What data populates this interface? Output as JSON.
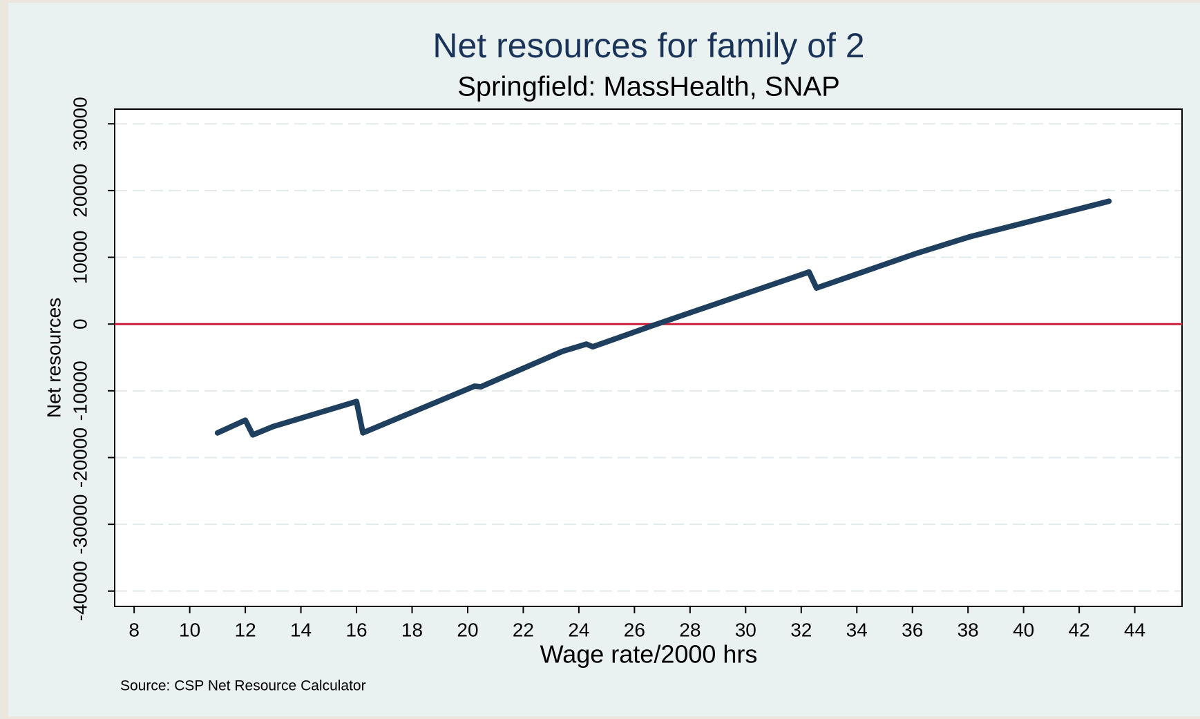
{
  "chart_data": {
    "type": "line",
    "title": "Net resources for family of 2",
    "subtitle": "Springfield: MassHealth, SNAP",
    "x_label": "Wage rate/2000 hrs",
    "y_label": "Net resources",
    "note": "Source: CSP Net Resource Calculator",
    "x": [
      11,
      12,
      12.27,
      13,
      16,
      16.23,
      20.25,
      20.47,
      23.4,
      24.27,
      24.5,
      26.6,
      32.28,
      32.55,
      36.08,
      38.08,
      43.07
    ],
    "series": [
      {
        "name": "Net resources",
        "color": "#1f3f5f",
        "values": [
          -16300,
          -14400,
          -16600,
          -15350,
          -11600,
          -16300,
          -9300,
          -9400,
          -4100,
          -3000,
          -3400,
          -300,
          7800,
          5400,
          10500,
          13100,
          18400
        ]
      }
    ],
    "xlim": [
      7.3,
      45.7
    ],
    "ylim": [
      -42300,
      32200
    ],
    "xticks": [
      8,
      10,
      12,
      14,
      16,
      18,
      20,
      22,
      24,
      26,
      28,
      30,
      32,
      34,
      36,
      38,
      40,
      42,
      44
    ],
    "yticks": [
      -40000,
      -30000,
      -20000,
      -10000,
      0,
      10000,
      20000,
      30000
    ],
    "grid": true,
    "reference_line": {
      "value": 0,
      "color": "#cc1f3a"
    }
  }
}
